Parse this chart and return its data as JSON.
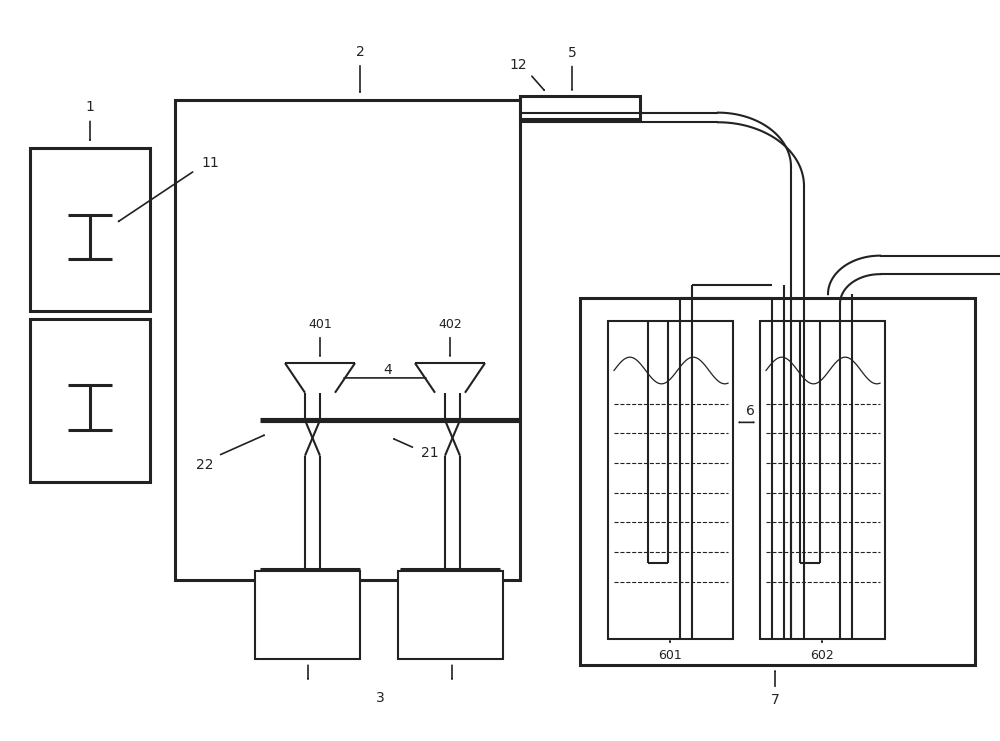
{
  "bg": "#ffffff",
  "lc": "#222222",
  "lw": 1.5,
  "lwt": 2.2,
  "fig_w": 10.0,
  "fig_h": 7.41
}
